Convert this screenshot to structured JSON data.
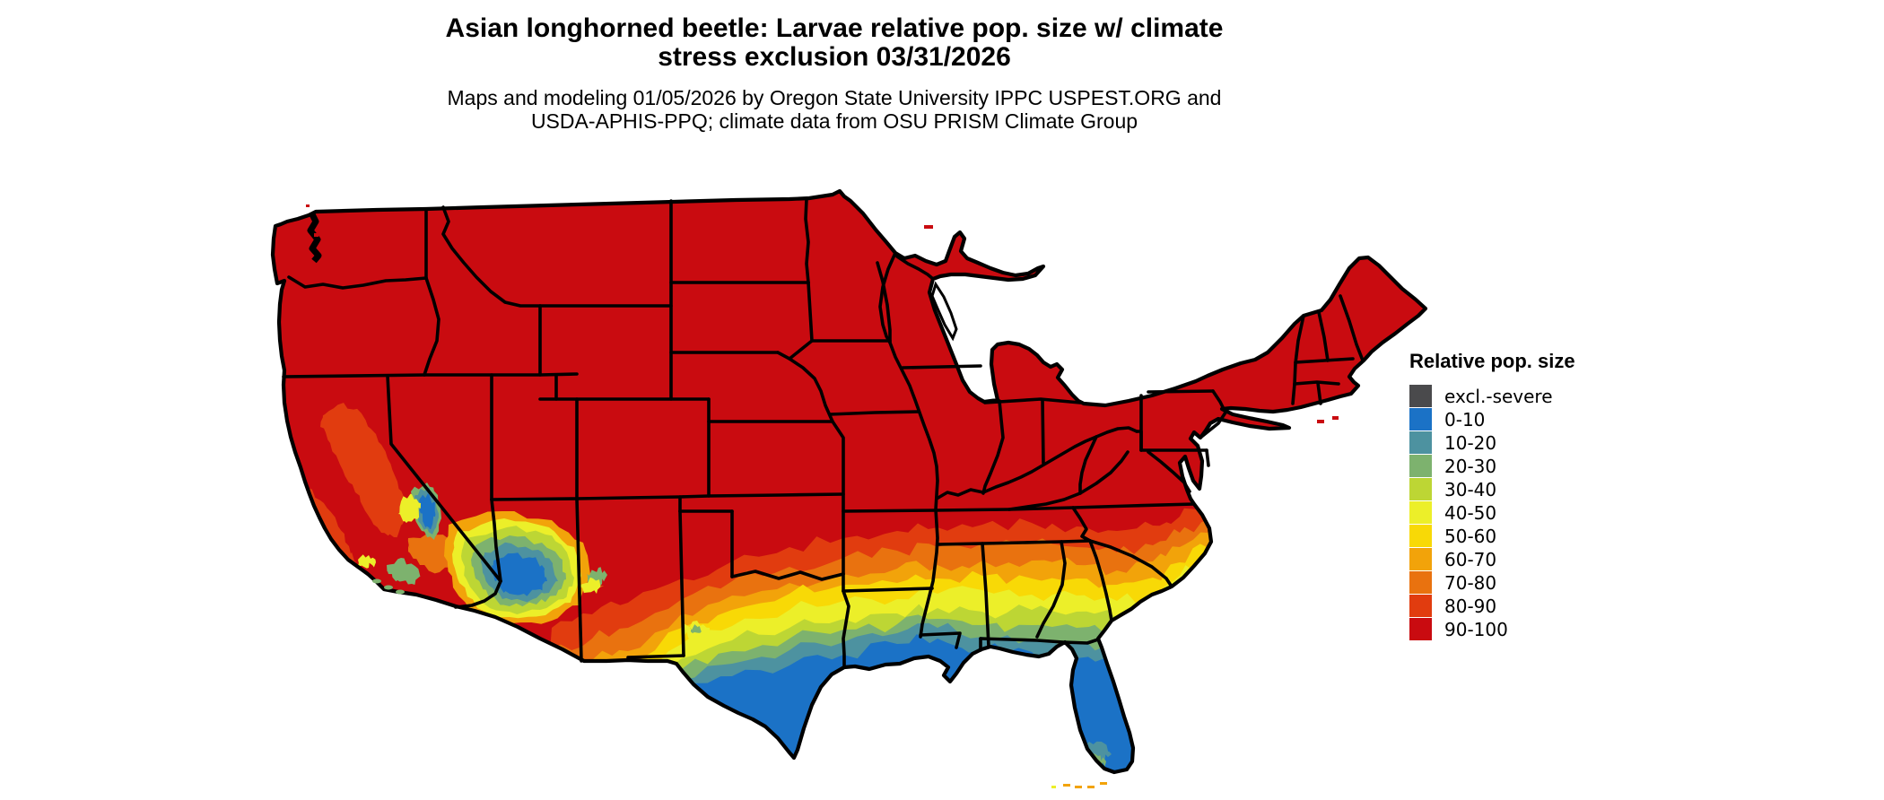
{
  "header": {
    "title_line1": "Asian longhorned beetle: Larvae relative pop. size w/ climate",
    "title_line2": "stress exclusion 03/31/2026",
    "subtitle_line1": "Maps and modeling 01/05/2026 by Oregon State University IPPC USPEST.ORG and",
    "subtitle_line2": "USDA-APHIS-PPQ; climate data from OSU PRISM Climate Group"
  },
  "legend": {
    "title": "Relative pop. size",
    "items": [
      {
        "label": "excl.-severe",
        "color": "#4a4a4c"
      },
      {
        "label": "0-10",
        "color": "#1b72c6"
      },
      {
        "label": "10-20",
        "color": "#4d92a0"
      },
      {
        "label": "20-30",
        "color": "#7db26e"
      },
      {
        "label": "30-40",
        "color": "#bdd634"
      },
      {
        "label": "40-50",
        "color": "#ecef29"
      },
      {
        "label": "50-60",
        "color": "#f8d906"
      },
      {
        "label": "60-70",
        "color": "#f2a30a"
      },
      {
        "label": "70-80",
        "color": "#e9720f"
      },
      {
        "label": "80-90",
        "color": "#e13c0f"
      },
      {
        "label": "90-100",
        "color": "#c90b10"
      }
    ]
  },
  "map": {
    "region": "Continental United States",
    "dominant_class": "90-100",
    "water_color": "#ffffff",
    "border_color": "#000000",
    "south_gradient_order": [
      "80-90",
      "70-80",
      "60-70",
      "50-60",
      "40-50",
      "30-40",
      "20-30",
      "10-20",
      "0-10"
    ]
  }
}
